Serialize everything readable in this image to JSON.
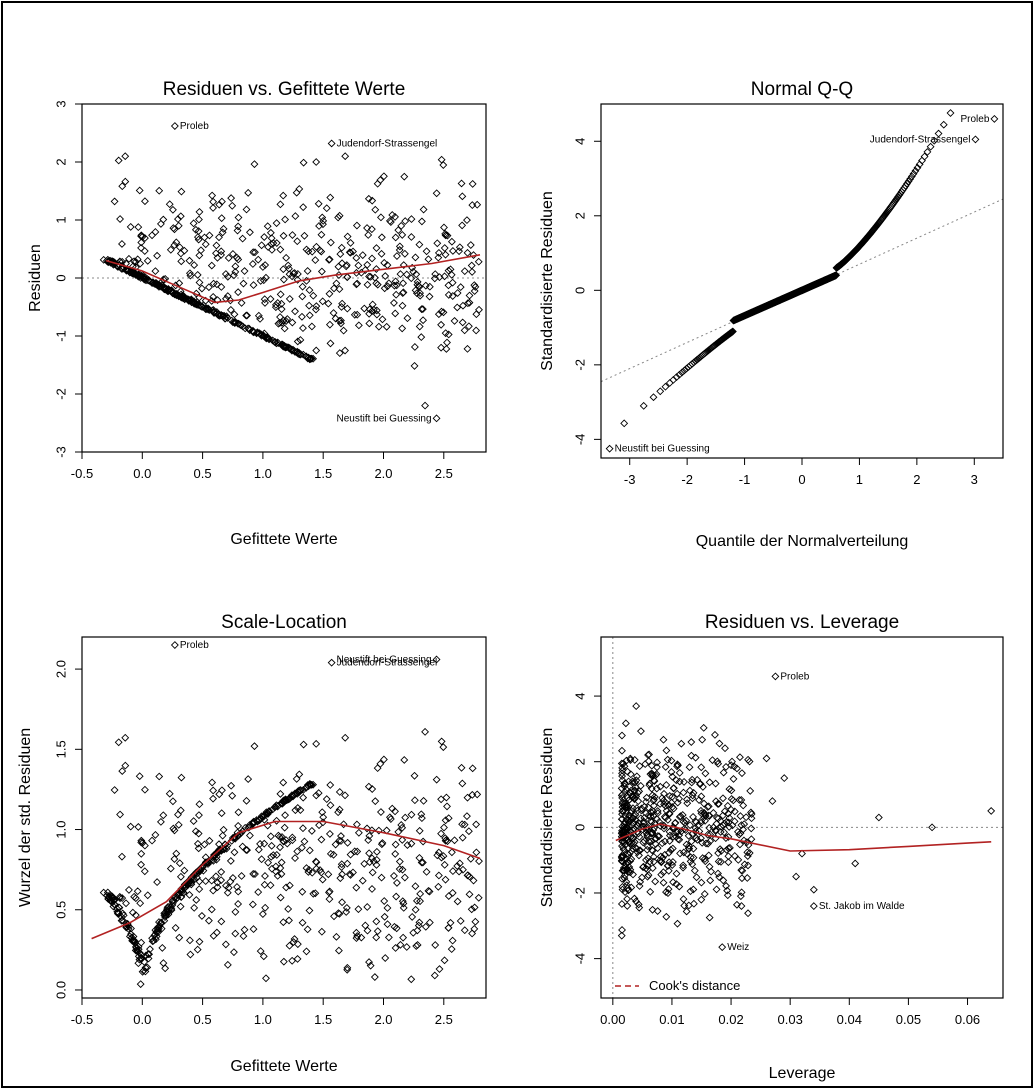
{
  "colors": {
    "points": "#000000",
    "smooth": "#b22222",
    "reference": "#888888",
    "frame": "#000000"
  },
  "chart_data": [
    {
      "type": "scatter",
      "title": "Residuen vs. Gefittete Werte",
      "xlabel": "Gefittete Werte",
      "ylabel": "Residuen",
      "xlim": [
        -0.5,
        2.85
      ],
      "ylim": [
        -3,
        3
      ],
      "xticks": [
        "-0.5",
        "0.0",
        "0.5",
        "1.0",
        "1.5",
        "2.0",
        "2.5"
      ],
      "yticks": [
        "-3",
        "-2",
        "-1",
        "0",
        "1",
        "2",
        "3"
      ],
      "reference_line": {
        "type": "horizontal",
        "value": 0
      },
      "smooth": [
        [
          -0.3,
          0.3
        ],
        [
          0.0,
          0.12
        ],
        [
          0.3,
          -0.15
        ],
        [
          0.6,
          -0.42
        ],
        [
          0.8,
          -0.38
        ],
        [
          1.0,
          -0.25
        ],
        [
          1.3,
          -0.05
        ],
        [
          1.6,
          0.05
        ],
        [
          2.0,
          0.15
        ],
        [
          2.4,
          0.25
        ],
        [
          2.8,
          0.4
        ]
      ],
      "labeled_points": [
        {
          "label": "Proleb",
          "x": 0.27,
          "y": 2.62
        },
        {
          "label": "Judendorf-Strassengel",
          "x": 1.57,
          "y": 2.32
        },
        {
          "label": "Neustift bei Guessing",
          "x": 2.44,
          "y": -2.42
        }
      ]
    },
    {
      "type": "scatter",
      "title": "Normal Q-Q",
      "xlabel": "Quantile der Normalverteilung",
      "ylabel": "Standardisierte Residuen",
      "xlim": [
        -3.5,
        3.5
      ],
      "ylim": [
        -4.5,
        5
      ],
      "xticks": [
        "-3",
        "-2",
        "-1",
        "0",
        "1",
        "2",
        "3"
      ],
      "yticks": [
        "-4",
        "-2",
        "0",
        "2",
        "4"
      ],
      "reference_line": {
        "type": "diagonal",
        "slope": 0.7,
        "intercept": 0
      },
      "labeled_points": [
        {
          "label": "Proleb",
          "x": 3.35,
          "y": 4.6
        },
        {
          "label": "Judendorf-Strassengel",
          "x": 3.02,
          "y": 4.05
        },
        {
          "label": "Neustift bei Guessing",
          "x": -3.35,
          "y": -4.25
        }
      ]
    },
    {
      "type": "scatter",
      "title": "Scale-Location",
      "xlabel": "Gefittete Werte",
      "ylabel": "Wurzel der std. Residuen",
      "xlim": [
        -0.5,
        2.85
      ],
      "ylim": [
        -0.05,
        2.2
      ],
      "xticks": [
        "-0.5",
        "0.0",
        "0.5",
        "1.0",
        "1.5",
        "2.0",
        "2.5"
      ],
      "yticks": [
        "0.0",
        "0.5",
        "1.0",
        "1.5",
        "2.0"
      ],
      "smooth": [
        [
          -0.42,
          0.32
        ],
        [
          -0.1,
          0.42
        ],
        [
          0.2,
          0.55
        ],
        [
          0.5,
          0.78
        ],
        [
          0.8,
          0.98
        ],
        [
          1.1,
          1.05
        ],
        [
          1.5,
          1.05
        ],
        [
          2.0,
          0.98
        ],
        [
          2.5,
          0.9
        ],
        [
          2.8,
          0.82
        ]
      ],
      "labeled_points": [
        {
          "label": "Proleb",
          "x": 0.27,
          "y": 2.15
        },
        {
          "label": "Judendorf-Strassengel",
          "x": 1.57,
          "y": 2.04
        },
        {
          "label": "Neustift bei Guessing",
          "x": 2.44,
          "y": 2.06
        }
      ]
    },
    {
      "type": "scatter",
      "title": "Residuen vs. Leverage",
      "xlabel": "Leverage",
      "ylabel": "Standardisierte Residuen",
      "xlim": [
        -0.002,
        0.066
      ],
      "ylim": [
        -5.2,
        5.8
      ],
      "xticks": [
        "0.00",
        "0.01",
        "0.02",
        "0.03",
        "0.04",
        "0.05",
        "0.06"
      ],
      "yticks": [
        "-4",
        "-2",
        "0",
        "2",
        "4"
      ],
      "reference_lines": [
        {
          "type": "horizontal",
          "value": 0
        },
        {
          "type": "vertical",
          "value": 0
        }
      ],
      "legend": {
        "label": "Cook's distance",
        "position": "bottom-left"
      },
      "smooth": [
        [
          0.0005,
          -0.4
        ],
        [
          0.005,
          -0.05
        ],
        [
          0.008,
          0.1
        ],
        [
          0.012,
          -0.05
        ],
        [
          0.016,
          -0.25
        ],
        [
          0.02,
          -0.35
        ],
        [
          0.03,
          -0.72
        ],
        [
          0.04,
          -0.68
        ],
        [
          0.05,
          -0.58
        ],
        [
          0.06,
          -0.48
        ],
        [
          0.064,
          -0.44
        ]
      ],
      "labeled_points": [
        {
          "label": "Proleb",
          "x": 0.0275,
          "y": 4.6
        },
        {
          "label": "St. Jakob im Walde",
          "x": 0.034,
          "y": -2.4
        },
        {
          "label": "Weiz",
          "x": 0.0185,
          "y": -3.65
        }
      ]
    }
  ]
}
